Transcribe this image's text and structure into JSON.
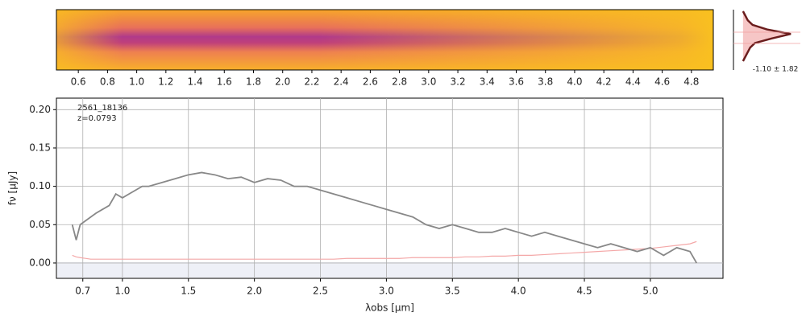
{
  "chart_data": [
    {
      "type": "image",
      "xlim": [
        0.45,
        4.95
      ],
      "xticks": [
        0.6,
        0.8,
        {
          "value": 1,
          "label": "1.0"
        },
        1.2,
        1.4,
        1.6,
        1.8,
        {
          "value": 2,
          "label": "2.0"
        },
        2.2,
        2.4,
        2.6,
        2.8,
        {
          "value": 3,
          "label": "3.0"
        },
        3.2,
        3.4,
        3.6,
        3.8,
        {
          "value": 4,
          "label": "4.0"
        },
        4.2,
        4.4,
        4.6,
        4.8
      ]
    },
    {
      "type": "profile",
      "annotation": "-1.10 ± 1.82",
      "xlim": [
        -0.2,
        1.2
      ],
      "values": [
        0.0,
        0.05,
        0.1,
        0.2,
        0.5,
        1.0,
        0.6,
        0.25,
        0.15,
        0.1,
        0.05,
        0.0
      ]
    },
    {
      "type": "line",
      "legend_text": [
        "2561_18136",
        "z=0.0793"
      ],
      "x_label": "λobs [μm]",
      "y_label": "fν [μJy]",
      "grid": true,
      "xlim": [
        0.5,
        5.55
      ],
      "ylim": [
        -0.02,
        0.215
      ],
      "xticks": [
        0.7,
        {
          "value": 1,
          "label": "1.0"
        },
        1.5,
        {
          "value": 2,
          "label": "2.0"
        },
        2.5,
        {
          "value": 3,
          "label": "3.0"
        },
        3.5,
        {
          "value": 4,
          "label": "4.0"
        },
        4.5,
        {
          "value": 5,
          "label": "5.0"
        }
      ],
      "yticks": [
        {
          "value": 0,
          "label": "0.00"
        },
        {
          "value": 0.05,
          "label": "0.05"
        },
        {
          "value": 0.1,
          "label": "0.10"
        },
        {
          "value": 0.15,
          "label": "0.15"
        },
        {
          "value": 0.2,
          "label": "0.20"
        }
      ],
      "x": [
        0.62,
        0.65,
        0.68,
        0.72,
        0.76,
        0.8,
        0.85,
        0.9,
        0.95,
        1.0,
        1.05,
        1.1,
        1.15,
        1.2,
        1.3,
        1.4,
        1.5,
        1.6,
        1.7,
        1.8,
        1.9,
        2.0,
        2.1,
        2.2,
        2.3,
        2.4,
        2.5,
        2.6,
        2.7,
        2.8,
        2.9,
        3.0,
        3.1,
        3.2,
        3.3,
        3.4,
        3.5,
        3.6,
        3.7,
        3.8,
        3.9,
        4.0,
        4.1,
        4.2,
        4.3,
        4.4,
        4.5,
        4.6,
        4.7,
        4.8,
        4.9,
        5.0,
        5.1,
        5.2,
        5.3,
        5.35
      ],
      "series": [
        {
          "name": "flux",
          "color": "#888888",
          "values": [
            0.05,
            0.03,
            0.05,
            0.055,
            0.06,
            0.065,
            0.07,
            0.075,
            0.09,
            0.085,
            0.09,
            0.095,
            0.1,
            0.1,
            0.105,
            0.11,
            0.115,
            0.118,
            0.115,
            0.11,
            0.112,
            0.105,
            0.11,
            0.108,
            0.1,
            0.1,
            0.095,
            0.09,
            0.085,
            0.08,
            0.075,
            0.07,
            0.065,
            0.06,
            0.05,
            0.045,
            0.05,
            0.045,
            0.04,
            0.04,
            0.045,
            0.04,
            0.035,
            0.04,
            0.035,
            0.03,
            0.025,
            0.02,
            0.025,
            0.02,
            0.015,
            0.02,
            0.01,
            0.02,
            0.015,
            0.0
          ]
        },
        {
          "name": "error",
          "color": "#f4a8a8",
          "values": [
            0.01,
            0.008,
            0.007,
            0.006,
            0.005,
            0.005,
            0.005,
            0.005,
            0.005,
            0.005,
            0.005,
            0.005,
            0.005,
            0.005,
            0.005,
            0.005,
            0.005,
            0.005,
            0.005,
            0.005,
            0.005,
            0.005,
            0.005,
            0.005,
            0.005,
            0.005,
            0.005,
            0.005,
            0.006,
            0.006,
            0.006,
            0.006,
            0.006,
            0.007,
            0.007,
            0.007,
            0.007,
            0.008,
            0.008,
            0.009,
            0.009,
            0.01,
            0.01,
            0.011,
            0.012,
            0.013,
            0.014,
            0.015,
            0.016,
            0.017,
            0.018,
            0.019,
            0.021,
            0.023,
            0.025,
            0.028
          ]
        }
      ]
    }
  ]
}
